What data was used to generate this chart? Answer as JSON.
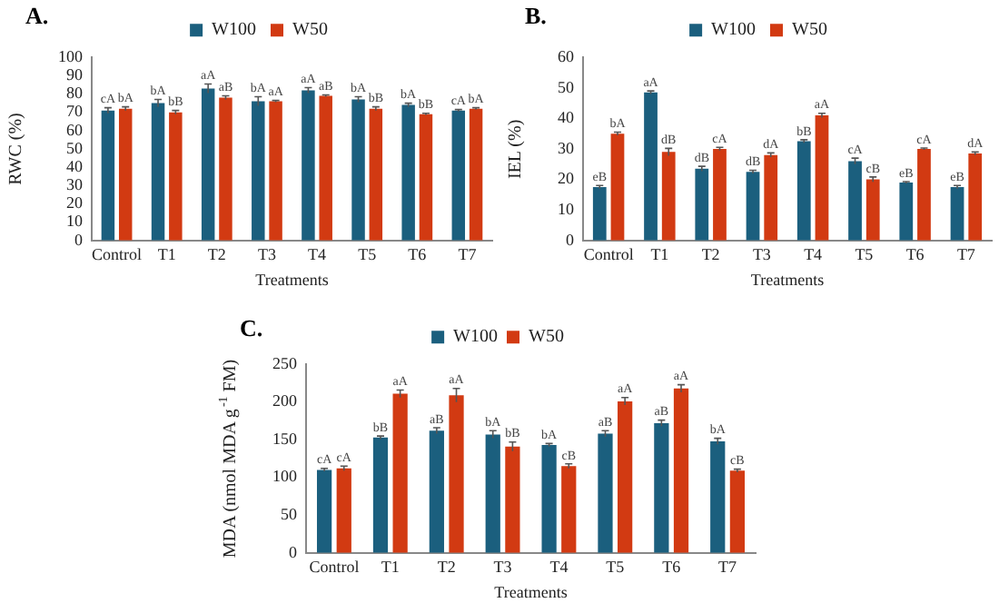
{
  "chart_data": [
    {
      "type": "bar",
      "title": "A.",
      "xlabel": "Treatments",
      "ylabel": "RWC (%)",
      "categories": [
        "Control",
        "T1",
        "T2",
        "T3",
        "T4",
        "T5",
        "T6",
        "T7"
      ],
      "ylim": [
        0,
        100
      ],
      "yticks": [
        0,
        10,
        20,
        30,
        40,
        50,
        60,
        70,
        80,
        90,
        100
      ],
      "grid": false,
      "legend": "top",
      "series": [
        {
          "name": "W100",
          "color": "#1b5f7e",
          "values": [
            71,
            75,
            83,
            76,
            82,
            77,
            74,
            71
          ],
          "errors": [
            1.5,
            2,
            2.5,
            2.5,
            1.5,
            1.5,
            1,
            0.5
          ],
          "value_labels": [
            "cA",
            "bA",
            "aA",
            "bA",
            "aA",
            "bA",
            "bA",
            "cA"
          ]
        },
        {
          "name": "W50",
          "color": "#d23a12",
          "values": [
            72,
            70,
            78,
            76,
            79,
            72,
            69,
            72
          ],
          "errors": [
            1,
            1,
            1,
            0.5,
            0.5,
            1,
            0.5,
            0.5
          ],
          "value_labels": [
            "bA",
            "bB",
            "aB",
            "aA",
            "aB",
            "bB",
            "bB",
            "bA"
          ]
        }
      ]
    },
    {
      "type": "bar",
      "title": "B.",
      "xlabel": "Treatments",
      "ylabel": "IEL (%)",
      "categories": [
        "Control",
        "T1",
        "T2",
        "T3",
        "T4",
        "T5",
        "T6",
        "T7"
      ],
      "ylim": [
        0,
        60
      ],
      "yticks": [
        0,
        10,
        20,
        30,
        40,
        50,
        60
      ],
      "grid": false,
      "legend": "top",
      "series": [
        {
          "name": "W100",
          "color": "#1b5f7e",
          "values": [
            17.5,
            48.5,
            23.5,
            22.5,
            32.5,
            26,
            19,
            17.5
          ],
          "errors": [
            0.5,
            0.5,
            0.8,
            0.5,
            0.5,
            1,
            0.3,
            0.5
          ],
          "value_labels": [
            "eB",
            "aA",
            "dB",
            "dB",
            "bB",
            "cA",
            "eB",
            "eB"
          ]
        },
        {
          "name": "W50",
          "color": "#d23a12",
          "values": [
            35,
            29,
            30,
            28,
            41,
            20,
            30,
            28.5
          ],
          "errors": [
            0.5,
            1.2,
            0.5,
            0.7,
            0.7,
            0.8,
            0.3,
            0.5
          ],
          "value_labels": [
            "bA",
            "dB",
            "cA",
            "dA",
            "aA",
            "cB",
            "cA",
            "dA"
          ]
        }
      ]
    },
    {
      "type": "bar",
      "title": "C.",
      "xlabel": "Treatments",
      "ylabel": "MDA (nmol MDA g$^{-1}$ FM)",
      "categories": [
        "Control",
        "T1",
        "T2",
        "T3",
        "T4",
        "T5",
        "T6",
        "T7"
      ],
      "ylim": [
        0,
        250
      ],
      "yticks": [
        0,
        50,
        100,
        150,
        200,
        250
      ],
      "grid": false,
      "legend": "top",
      "series": [
        {
          "name": "W100",
          "color": "#1b5f7e",
          "values": [
            110,
            153,
            162,
            157,
            143,
            158,
            172,
            148
          ],
          "errors": [
            2,
            2,
            4,
            5,
            2,
            4,
            4,
            4
          ],
          "value_labels": [
            "cA",
            "bB",
            "aB",
            "bA",
            "bA",
            "aB",
            "aB",
            "bA"
          ]
        },
        {
          "name": "W50",
          "color": "#d23a12",
          "values": [
            112,
            211,
            209,
            141,
            115,
            201,
            218,
            109
          ],
          "errors": [
            3,
            5,
            9,
            6,
            3,
            5,
            5,
            2
          ],
          "value_labels": [
            "cA",
            "aA",
            "aA",
            "bB",
            "cB",
            "aA",
            "aA",
            "cB"
          ]
        }
      ]
    }
  ]
}
